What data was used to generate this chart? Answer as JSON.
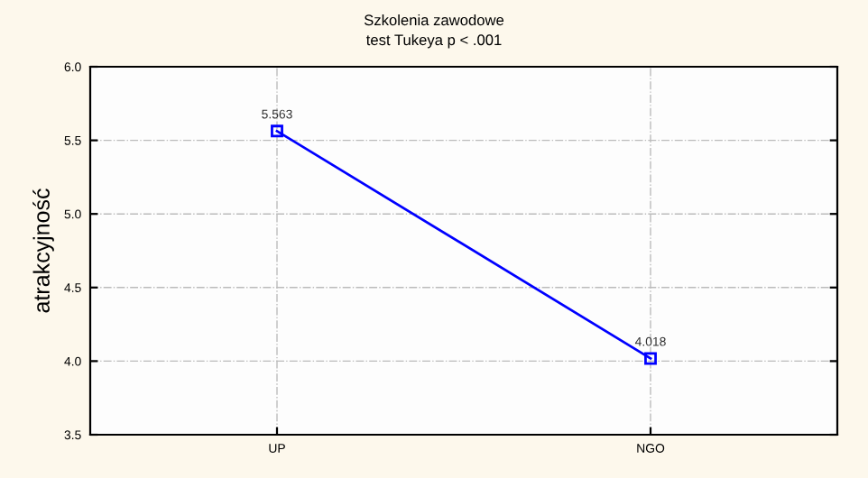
{
  "chart_data": {
    "type": "line",
    "title": "Szkolenia zawodowe",
    "subtitle": "test Tukeya p < .001",
    "ylabel": "atrakcyjność",
    "categories": [
      "UP",
      "NGO"
    ],
    "series": [
      {
        "color": "#0000ff",
        "values": [
          5.563,
          4.018
        ]
      }
    ],
    "ylim": [
      3.5,
      6.0
    ],
    "yticks": [
      {
        "value": 3.5,
        "label": "3.5"
      },
      {
        "value": 4.0,
        "label": "4.0"
      },
      {
        "value": 4.5,
        "label": "4.5"
      },
      {
        "value": 5.0,
        "label": "5.0"
      },
      {
        "value": 5.5,
        "label": "5.5"
      },
      {
        "value": 6.0,
        "label": "6.0"
      }
    ],
    "grid": true,
    "marker": "square",
    "line_style": "solid",
    "data_labels": true
  }
}
